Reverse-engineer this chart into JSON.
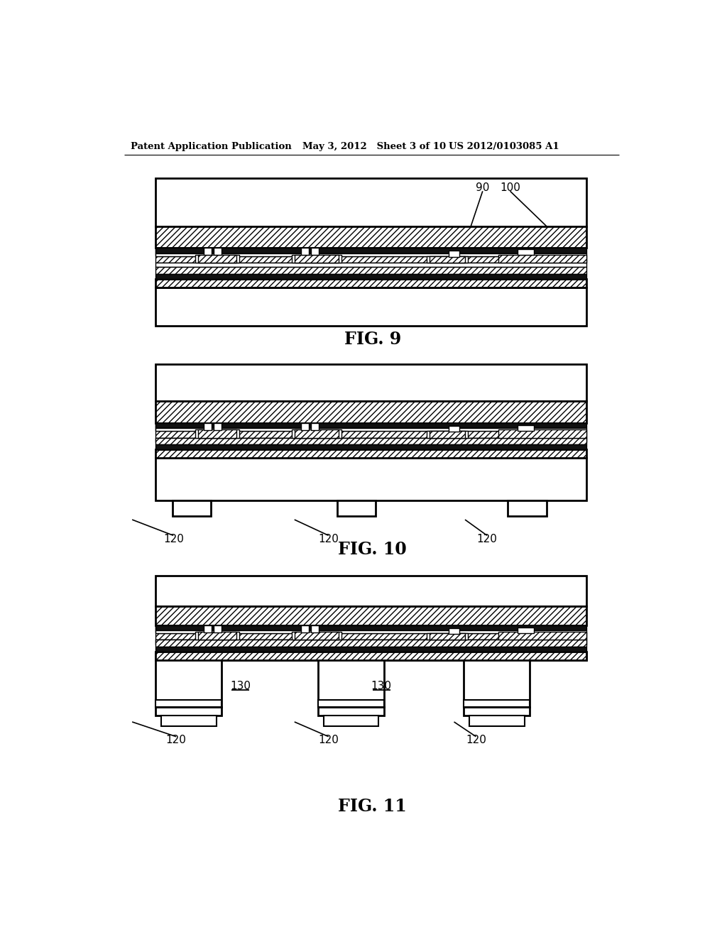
{
  "bg_color": "#ffffff",
  "lc": "#000000",
  "header_left": "Patent Application Publication",
  "header_mid": "May 3, 2012   Sheet 3 of 10",
  "header_right": "US 2012/0103085 A1",
  "fig9_label": "FIG. 9",
  "fig10_label": "FIG. 10",
  "fig11_label": "FIG. 11",
  "label_90": "90",
  "label_100": "100",
  "label_120": "120",
  "label_130": "130"
}
